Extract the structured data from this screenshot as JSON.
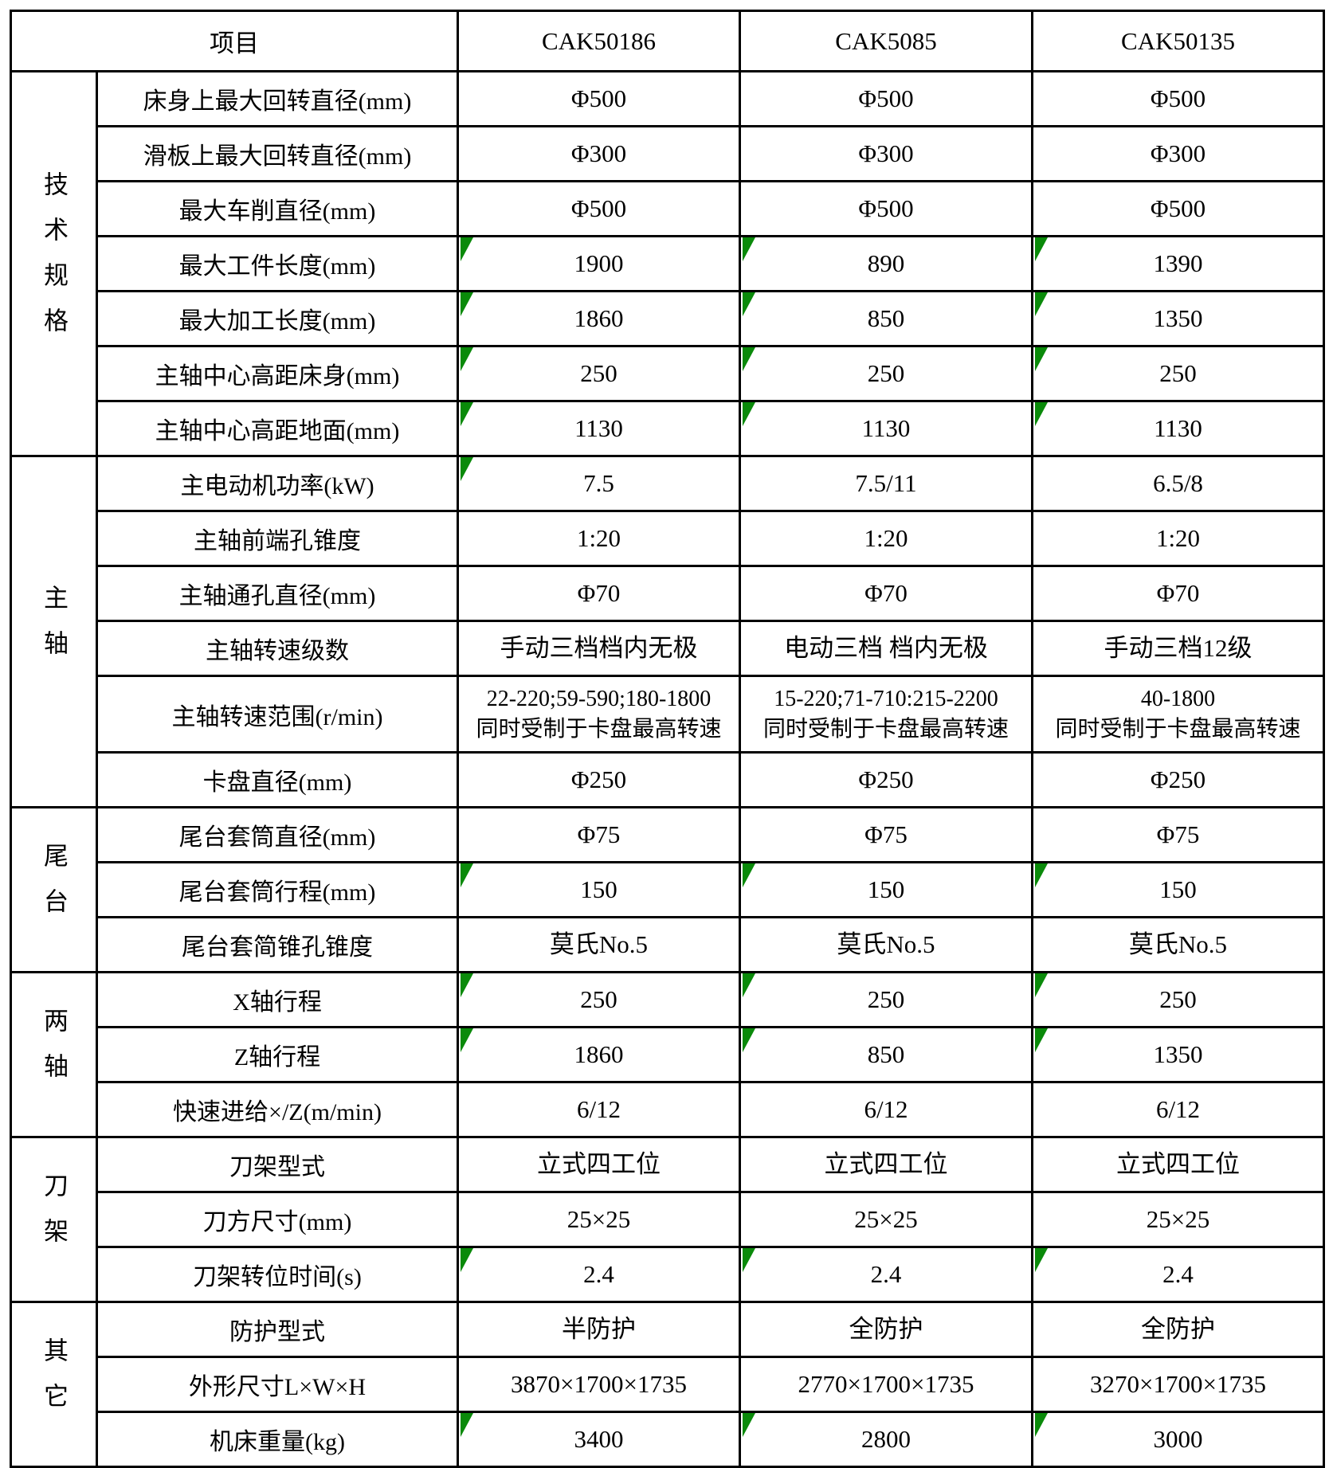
{
  "table": {
    "flag_color": "#0a8a0a",
    "border_color": "#000000",
    "header": {
      "item_label": "项目",
      "models": [
        "CAK50186",
        "CAK5085",
        "CAK50135"
      ]
    },
    "groups": [
      {
        "name": "技术规格",
        "rows": [
          {
            "label": "床身上最大回转直径(mm)",
            "values": [
              "Φ500",
              "Φ500",
              "Φ500"
            ],
            "flags": [
              false,
              false,
              false
            ]
          },
          {
            "label": "滑板上最大回转直径(mm)",
            "values": [
              "Φ300",
              "Φ300",
              "Φ300"
            ],
            "flags": [
              false,
              false,
              false
            ]
          },
          {
            "label": "最大车削直径(mm)",
            "values": [
              "Φ500",
              "Φ500",
              "Φ500"
            ],
            "flags": [
              false,
              false,
              false
            ]
          },
          {
            "label": "最大工件长度(mm)",
            "values": [
              "1900",
              "890",
              "1390"
            ],
            "flags": [
              true,
              true,
              true
            ]
          },
          {
            "label": "最大加工长度(mm)",
            "values": [
              "1860",
              "850",
              "1350"
            ],
            "flags": [
              true,
              true,
              true
            ]
          },
          {
            "label": "主轴中心高距床身(mm)",
            "values": [
              "250",
              "250",
              "250"
            ],
            "flags": [
              true,
              true,
              true
            ]
          },
          {
            "label": "主轴中心高距地面(mm)",
            "values": [
              "1130",
              "1130",
              "1130"
            ],
            "flags": [
              true,
              true,
              true
            ]
          }
        ]
      },
      {
        "name": "主轴",
        "rows": [
          {
            "label": "主电动机功率(kW)",
            "values": [
              "7.5",
              "7.5/11",
              "6.5/8"
            ],
            "flags": [
              true,
              false,
              false
            ]
          },
          {
            "label": "主轴前端孔锥度",
            "values": [
              "1:20",
              "1:20",
              "1:20"
            ],
            "flags": [
              false,
              false,
              false
            ]
          },
          {
            "label": "主轴通孔直径(mm)",
            "values": [
              "Φ70",
              "Φ70",
              "Φ70"
            ],
            "flags": [
              false,
              false,
              false
            ]
          },
          {
            "label": "主轴转速级数",
            "values": [
              "手动三档档内无极",
              "电动三档 档内无极",
              "手动三档12级"
            ],
            "flags": [
              false,
              false,
              false
            ]
          },
          {
            "label": "主轴转速范围(r/min)",
            "values": [
              "22-220;59-590;180-1800\n同时受制于卡盘最高转速",
              "15-220;71-710:215-2200\n同时受制于卡盘最高转速",
              "40-1800\n同时受制于卡盘最高转速"
            ],
            "flags": [
              false,
              false,
              false
            ],
            "tall": true
          },
          {
            "label": "卡盘直径(mm)",
            "values": [
              "Φ250",
              "Φ250",
              "Φ250"
            ],
            "flags": [
              false,
              false,
              false
            ]
          }
        ]
      },
      {
        "name": "尾台",
        "rows": [
          {
            "label": "尾台套筒直径(mm)",
            "values": [
              "Φ75",
              "Φ75",
              "Φ75"
            ],
            "flags": [
              false,
              false,
              false
            ]
          },
          {
            "label": "尾台套筒行程(mm)",
            "values": [
              "150",
              "150",
              "150"
            ],
            "flags": [
              true,
              true,
              true
            ]
          },
          {
            "label": "尾台套简锥孔锥度",
            "values": [
              "莫氏No.5",
              "莫氏No.5",
              "莫氏No.5"
            ],
            "flags": [
              false,
              false,
              false
            ]
          }
        ]
      },
      {
        "name": "两轴",
        "rows": [
          {
            "label": "X轴行程",
            "values": [
              "250",
              "250",
              "250"
            ],
            "flags": [
              true,
              true,
              true
            ]
          },
          {
            "label": "Z轴行程",
            "values": [
              "1860",
              "850",
              "1350"
            ],
            "flags": [
              true,
              true,
              true
            ]
          },
          {
            "label": "快速进给×/Z(m/min)",
            "values": [
              "6/12",
              "6/12",
              "6/12"
            ],
            "flags": [
              false,
              false,
              false
            ]
          }
        ]
      },
      {
        "name": "刀架",
        "rows": [
          {
            "label": "刀架型式",
            "values": [
              "立式四工位",
              "立式四工位",
              "立式四工位"
            ],
            "flags": [
              false,
              false,
              false
            ]
          },
          {
            "label": "刀方尺寸(mm)",
            "values": [
              "25×25",
              "25×25",
              "25×25"
            ],
            "flags": [
              false,
              false,
              false
            ]
          },
          {
            "label": "刀架转位时间(s)",
            "values": [
              "2.4",
              "2.4",
              "2.4"
            ],
            "flags": [
              true,
              true,
              true
            ]
          }
        ]
      },
      {
        "name": "其它",
        "rows": [
          {
            "label": "防护型式",
            "values": [
              "半防护",
              "全防护",
              "全防护"
            ],
            "flags": [
              false,
              false,
              false
            ]
          },
          {
            "label": "外形尺寸L×W×H",
            "values": [
              "3870×1700×1735",
              "2770×1700×1735",
              "3270×1700×1735"
            ],
            "flags": [
              false,
              false,
              false
            ]
          },
          {
            "label": "机床重量(kg)",
            "values": [
              "3400",
              "2800",
              "3000"
            ],
            "flags": [
              true,
              true,
              true
            ]
          }
        ]
      }
    ]
  }
}
